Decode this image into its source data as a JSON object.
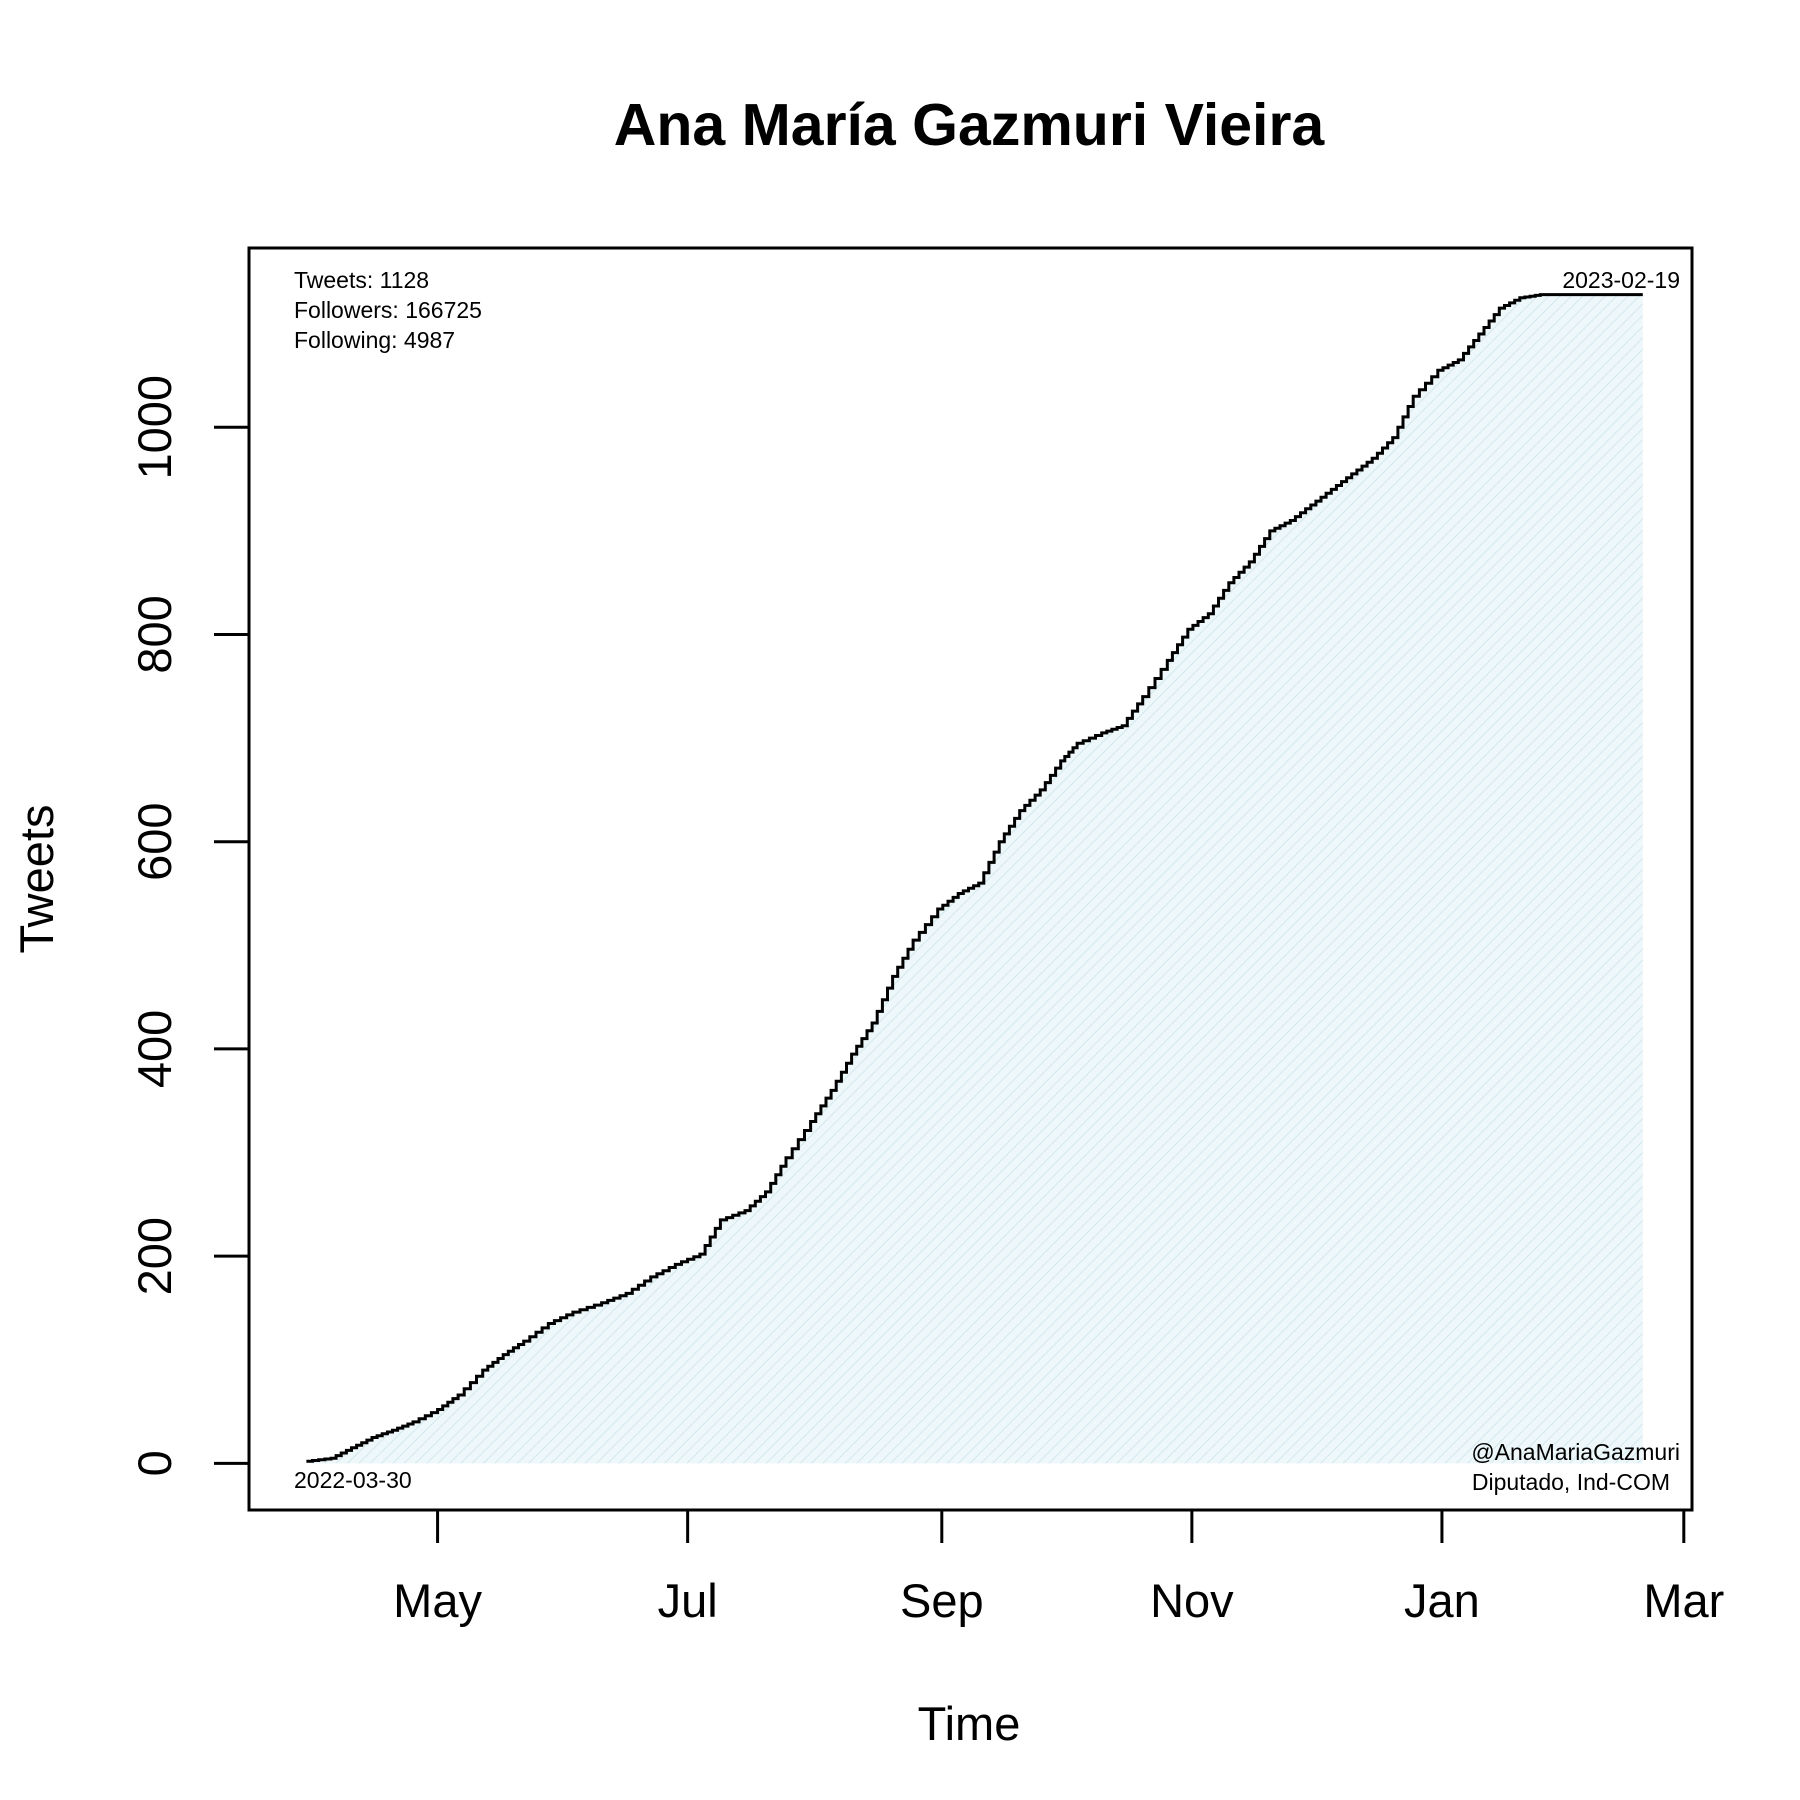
{
  "chart_data": {
    "type": "area",
    "title": "Ana María Gazmuri Vieira",
    "xlabel": "Time",
    "ylabel": "Tweets",
    "x_tick_labels": [
      "May",
      "Jul",
      "Sep",
      "Nov",
      "Jan",
      "Mar"
    ],
    "x_tick_dates": [
      "2022-05-01",
      "2022-07-01",
      "2022-09-01",
      "2022-11-01",
      "2023-01-01",
      "2023-03-01"
    ],
    "y_ticks": [
      0,
      200,
      400,
      600,
      800,
      1000
    ],
    "y_tick_labels": [
      "0",
      "200",
      "400",
      "600",
      "800",
      "1000"
    ],
    "xlim": [
      "2022-03-16",
      "2023-03-03"
    ],
    "ylim": [
      -45,
      1173
    ],
    "grid": false,
    "legend": "none",
    "colors": {
      "line": "#000000",
      "fill": "#e3f1f4",
      "hatch": "#cfe6ec"
    },
    "stats": {
      "tweets": "Tweets: 1128",
      "followers": "Followers: 166725",
      "following": "Following: 4987"
    },
    "start_date": "2022-03-30",
    "end_date": "2023-02-19",
    "handle": "@AnaMariaGazmuri",
    "role": "Diputado, Ind-COM",
    "series": [
      {
        "x": [
          "2022-03-30",
          "2022-04-05",
          "2022-04-10",
          "2022-04-15",
          "2022-04-20",
          "2022-04-25",
          "2022-05-01",
          "2022-05-06",
          "2022-05-12",
          "2022-05-17",
          "2022-05-22",
          "2022-05-28",
          "2022-06-03",
          "2022-06-10",
          "2022-06-16",
          "2022-06-22",
          "2022-06-28",
          "2022-07-04",
          "2022-07-09",
          "2022-07-15",
          "2022-07-20",
          "2022-07-25",
          "2022-07-31",
          "2022-08-05",
          "2022-08-10",
          "2022-08-15",
          "2022-08-20",
          "2022-08-25",
          "2022-08-31",
          "2022-09-05",
          "2022-09-10",
          "2022-09-15",
          "2022-09-20",
          "2022-09-25",
          "2022-09-30",
          "2022-10-04",
          "2022-10-10",
          "2022-10-15",
          "2022-10-20",
          "2022-10-26",
          "2022-10-31",
          "2022-11-05",
          "2022-11-10",
          "2022-11-15",
          "2022-11-20",
          "2022-11-25",
          "2022-11-30",
          "2022-12-05",
          "2022-12-10",
          "2022-12-15",
          "2022-12-20",
          "2022-12-25",
          "2022-12-31",
          "2023-01-05",
          "2023-01-10",
          "2023-01-15",
          "2023-01-20",
          "2023-01-25",
          "2023-01-30",
          "2023-02-04",
          "2023-02-09",
          "2023-02-14",
          "2023-02-19"
        ],
        "y": [
          2,
          5,
          15,
          25,
          32,
          40,
          52,
          66,
          90,
          105,
          118,
          135,
          146,
          155,
          164,
          180,
          192,
          202,
          235,
          244,
          262,
          295,
          330,
          360,
          395,
          425,
          470,
          505,
          535,
          550,
          560,
          600,
          630,
          650,
          678,
          695,
          705,
          712,
          740,
          775,
          805,
          820,
          850,
          870,
          900,
          910,
          925,
          940,
          955,
          970,
          990,
          1030,
          1055,
          1065,
          1090,
          1115,
          1125,
          1128,
          1128,
          1128,
          1128,
          1128,
          1128
        ]
      }
    ]
  }
}
